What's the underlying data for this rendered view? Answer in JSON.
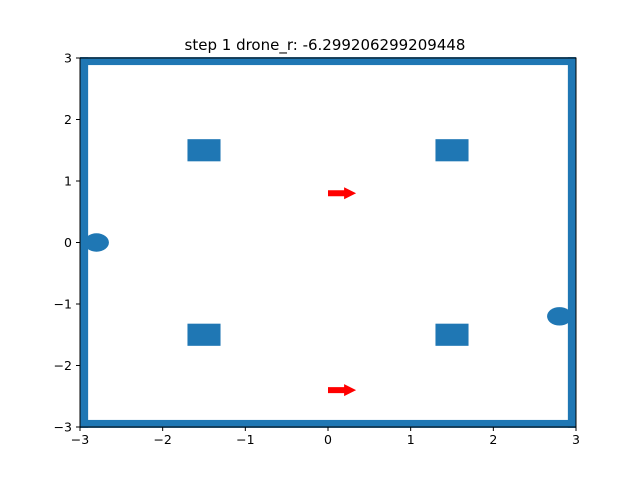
{
  "chart_data": {
    "type": "scatter",
    "title": "step 1 drone_r: -6.299206299209448",
    "xlabel": "",
    "ylabel": "",
    "xlim": [
      -3,
      3
    ],
    "ylim": [
      -3,
      3
    ],
    "x_ticks": [
      "−3",
      "−2",
      "−1",
      "0",
      "1",
      "2",
      "3"
    ],
    "y_ticks": [
      "3",
      "2",
      "1",
      "0",
      "−1",
      "−2",
      "−3"
    ],
    "grid": false,
    "colors": {
      "blue": "#1f77b4",
      "red": "#ff0000"
    },
    "walls": {
      "x_min": -2.95,
      "x_max": 2.95,
      "y_min": -2.95,
      "y_max": 2.95
    },
    "obstacles": [
      {
        "x": -1.5,
        "y": 1.5,
        "w": 0.4,
        "h": 0.36
      },
      {
        "x": 1.5,
        "y": 1.5,
        "w": 0.4,
        "h": 0.36
      },
      {
        "x": -1.5,
        "y": -1.5,
        "w": 0.4,
        "h": 0.36
      },
      {
        "x": 1.5,
        "y": -1.5,
        "w": 0.4,
        "h": 0.36
      }
    ],
    "circles": [
      {
        "x": -2.8,
        "y": 0.0,
        "rx": 0.15,
        "ry": 0.15
      },
      {
        "x": 2.8,
        "y": -1.2,
        "rx": 0.15,
        "ry": 0.15
      }
    ],
    "arrows": [
      {
        "x": 0.0,
        "y": 0.8,
        "dx": 0.34,
        "dy": 0.0
      },
      {
        "x": 0.0,
        "y": -2.4,
        "dx": 0.34,
        "dy": 0.0
      }
    ]
  }
}
